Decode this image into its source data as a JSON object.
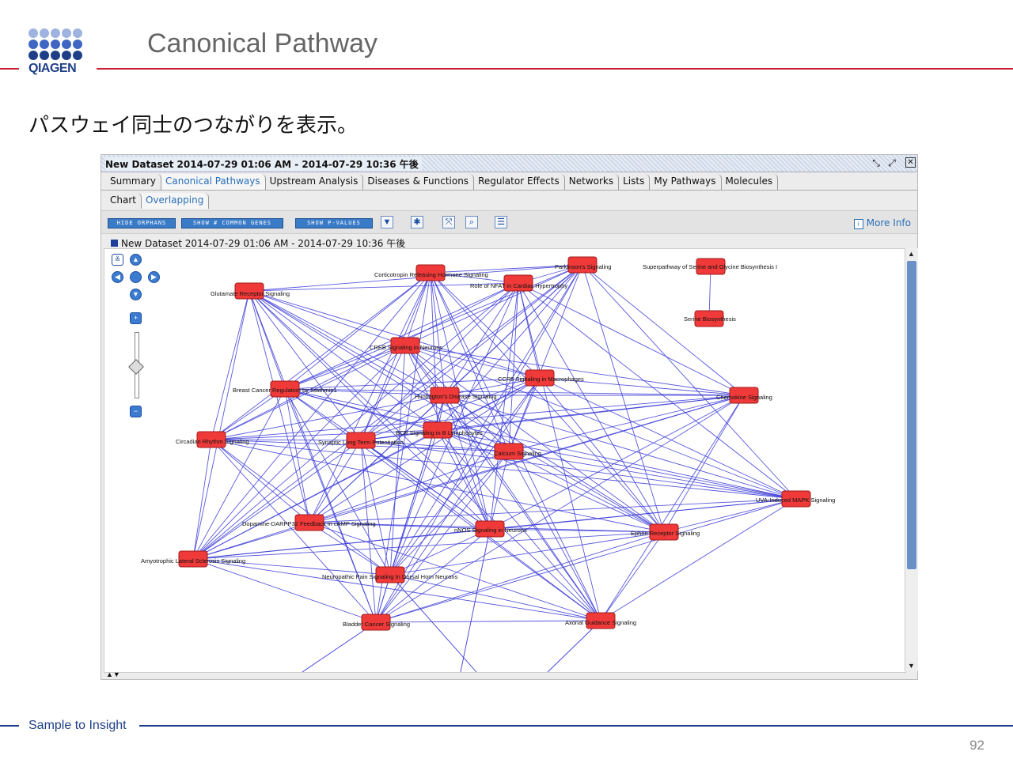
{
  "slide": {
    "logo_text": "QIAGEN",
    "title": "Canonical Pathway",
    "subtitle": "パスウェイ同士のつながりを表示。",
    "footer": "Sample to Insight",
    "page_number": "92",
    "colors": {
      "accent_red": "#cc1f36",
      "brand_blue": "#1e3f87"
    }
  },
  "window": {
    "title": "New Dataset 2014-07-29 01:06 AM - 2014-07-29 10:36 午後",
    "tabs": [
      "Summary",
      "Canonical Pathways",
      "Upstream Analysis",
      "Diseases & Functions",
      "Regulator Effects",
      "Networks",
      "Lists",
      "My Pathways",
      "Molecules"
    ],
    "active_tab": "Canonical Pathways",
    "subtabs": [
      "Chart",
      "Overlapping"
    ],
    "active_subtab": "Overlapping",
    "toolbar": {
      "hide_orphans": "HIDE ORPHANS",
      "show_common_genes": "SHOW # COMMON GENES",
      "show_p_values": "SHOW P-VALUES",
      "icons": [
        "filter-icon",
        "network-layout-icon",
        "fit-to-screen-icon",
        "zoom-magnifier-icon",
        "checklist-icon"
      ],
      "more_info": "More Info"
    },
    "dataset_label": "New Dataset 2014-07-29 01:06 AM - 2014-07-29 10:36 午後"
  },
  "network": {
    "node_color": "#f03a3a",
    "edge_color": "#3c3cd8",
    "nodes": [
      {
        "label": "Corticotropin Releasing Hormone Signaling"
      },
      {
        "label": "Role of NFAT in Cardiac Hypertrophy"
      },
      {
        "label": "Parkinson's Signaling"
      },
      {
        "label": "Superpathway of Serine and Glycine Biosynthesis I"
      },
      {
        "label": "Serine Biosynthesis"
      },
      {
        "label": "Glutamate Receptor Signaling"
      },
      {
        "label": "CREB Signaling in Neurons"
      },
      {
        "label": "CCR5 Signaling in Macrophages"
      },
      {
        "label": "Breast Cancer Regulation by Stathmin1"
      },
      {
        "label": "Huntington's Disease Signaling"
      },
      {
        "label": "Chemokine Signaling"
      },
      {
        "label": "BCR Signaling in B Lymphocytes"
      },
      {
        "label": "Circadian Rhythm Signaling"
      },
      {
        "label": "Synaptic Long Term Potentiation"
      },
      {
        "label": "Calcium Signaling"
      },
      {
        "label": "UVA-Induced MAPK Signaling"
      },
      {
        "label": "Dopamine-DARPP32 Feedback in cAMP Signaling"
      },
      {
        "label": "nNOS Signaling in Neurons"
      },
      {
        "label": "Ephrin Receptor Signaling"
      },
      {
        "label": "Amyotrophic Lateral Sclerosis Signaling"
      },
      {
        "label": "Neuropathic Pain Signaling In Dorsal Horn Neurons"
      },
      {
        "label": "Bladder Cancer Signaling"
      },
      {
        "label": "Axonal Guidance Signaling"
      }
    ],
    "edges": [
      [
        "Superpathway of Serine and Glycine Biosynthesis I",
        "Serine Biosynthesis"
      ]
    ]
  }
}
